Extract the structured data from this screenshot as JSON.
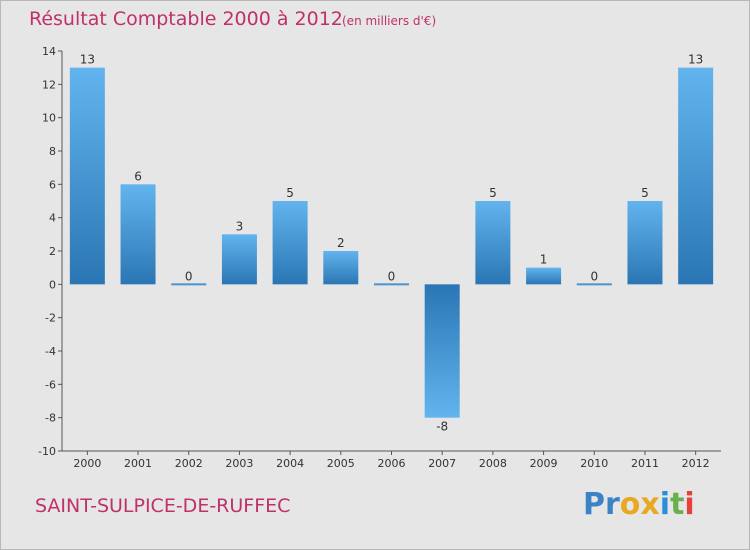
{
  "header": {
    "title": "Résultat Comptable 2000 à 2012",
    "subtitle": "(en milliers d'€)"
  },
  "footer": {
    "commune": "SAINT-SULPICE-DE-RUFFEC",
    "logo_parts": [
      "Pr",
      "o",
      "x",
      "i",
      "t",
      "i"
    ]
  },
  "colors": {
    "title": "#c0306a",
    "bar_dark": "#2a76b4",
    "bar_light": "#62b4ee",
    "logo": [
      "#3a83c6",
      "#e8a820",
      "#e8a820",
      "#2a8fd6",
      "#6ab04c",
      "#e8413c"
    ]
  },
  "chart_data": {
    "type": "bar",
    "title": "Résultat Comptable 2000 à 2012",
    "xlabel": "",
    "ylabel": "",
    "ylim": [
      -10,
      14
    ],
    "yticks": [
      14,
      12,
      10,
      8,
      6,
      4,
      2,
      0,
      -2,
      -4,
      -6,
      -8,
      -10
    ],
    "grid": false,
    "categories": [
      "2000",
      "2001",
      "2002",
      "2003",
      "2004",
      "2005",
      "2006",
      "2007",
      "2008",
      "2009",
      "2010",
      "2011",
      "2012"
    ],
    "values": [
      13,
      6,
      0,
      3,
      5,
      2,
      0,
      -8,
      5,
      1,
      0,
      5,
      13
    ]
  }
}
